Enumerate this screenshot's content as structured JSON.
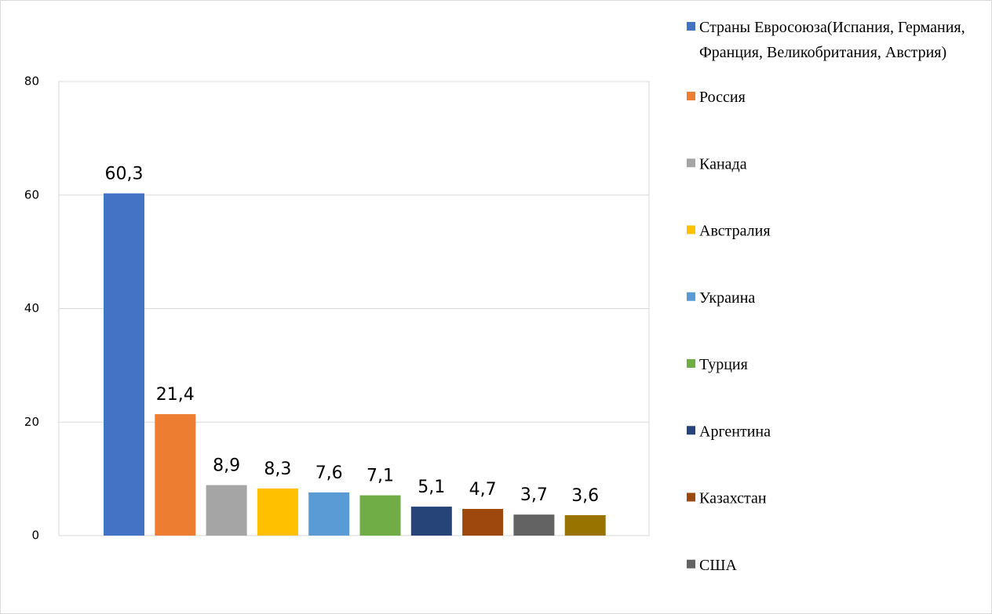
{
  "chart_data": {
    "type": "bar",
    "categories": [
      null
    ],
    "series": [
      {
        "name": "Страны Евросоюза(Испания, Германия, Франция, Великобритания, Австрия)",
        "color": "#4472c4",
        "values": [
          60.3
        ],
        "value_labels": [
          "60,3"
        ]
      },
      {
        "name": "Россия",
        "color": "#ed7d31",
        "values": [
          21.4
        ],
        "value_labels": [
          "21,4"
        ]
      },
      {
        "name": "Канада",
        "color": "#a5a5a5",
        "values": [
          8.9
        ],
        "value_labels": [
          "8,9"
        ]
      },
      {
        "name": "Австралия",
        "color": "#ffc000",
        "values": [
          8.3
        ],
        "value_labels": [
          "8,3"
        ]
      },
      {
        "name": "Украина",
        "color": "#5b9bd5",
        "values": [
          7.6
        ],
        "value_labels": [
          "7,6"
        ]
      },
      {
        "name": "Турция",
        "color": "#70ad47",
        "values": [
          7.1
        ],
        "value_labels": [
          "7,1"
        ]
      },
      {
        "name": "Аргентина",
        "color": "#264478",
        "values": [
          5.1
        ],
        "value_labels": [
          "5,1"
        ]
      },
      {
        "name": "Казахстан",
        "color": "#9e480e",
        "values": [
          4.7
        ],
        "value_labels": [
          "4,7"
        ]
      },
      {
        "name": "США",
        "color": "#636363",
        "values": [
          3.7
        ],
        "value_labels": [
          "3,7"
        ]
      },
      {
        "color": "#997300",
        "values": [
          3.6
        ],
        "value_labels": [
          "3,6"
        ]
      }
    ],
    "ylim": [
      0,
      80
    ],
    "yticks": [
      0,
      20,
      40,
      60,
      80
    ],
    "grid": true,
    "legend": "right"
  }
}
